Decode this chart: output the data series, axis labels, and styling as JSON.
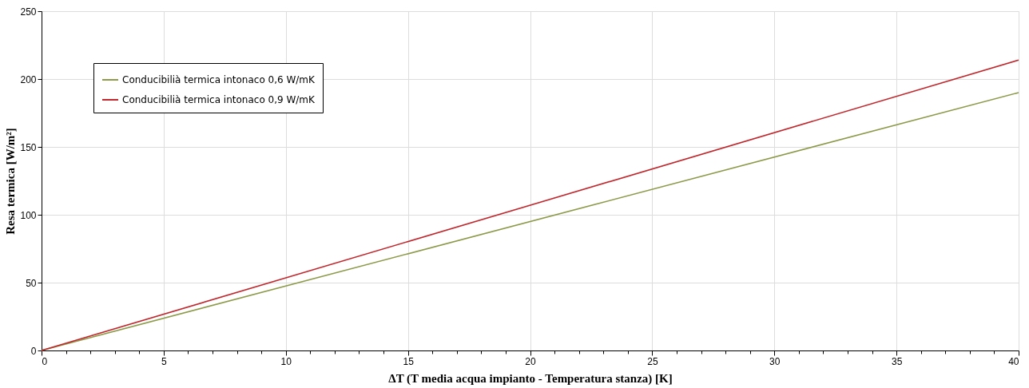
{
  "chart_data": {
    "type": "line",
    "xlabel": "ΔT (T media acqua impianto - Temperatura stanza) [K]",
    "ylabel": "Resa termica [W/m²]",
    "x": [
      0,
      40
    ],
    "series": [
      {
        "name": "Conducibilià termica intonaco 0,6 W/mK",
        "color": "#8c9a4a",
        "values": [
          0,
          190
        ]
      },
      {
        "name": "Conducibilià termica intonaco 0,9 W/mK",
        "color": "#c0282d",
        "values": [
          0,
          214
        ]
      }
    ],
    "xlim": [
      0,
      40
    ],
    "ylim": [
      0,
      250
    ],
    "xticks": [
      0,
      {
        "value": 1,
        "label": null
      },
      {
        "value": 2,
        "label": null
      },
      {
        "value": 3,
        "label": null
      },
      {
        "value": 4,
        "label": null
      },
      5,
      {
        "value": 6,
        "label": null
      },
      {
        "value": 7,
        "label": null
      },
      {
        "value": 8,
        "label": null
      },
      {
        "value": 9,
        "label": null
      },
      10,
      {
        "value": 11,
        "label": null
      },
      {
        "value": 12,
        "label": null
      },
      {
        "value": 13,
        "label": null
      },
      {
        "value": 14,
        "label": null
      },
      15,
      {
        "value": 16,
        "label": null
      },
      {
        "value": 17,
        "label": null
      },
      {
        "value": 18,
        "label": null
      },
      {
        "value": 19,
        "label": null
      },
      20,
      {
        "value": 21,
        "label": null
      },
      {
        "value": 22,
        "label": null
      },
      {
        "value": 23,
        "label": null
      },
      {
        "value": 24,
        "label": null
      },
      25,
      {
        "value": 26,
        "label": null
      },
      {
        "value": 27,
        "label": null
      },
      {
        "value": 28,
        "label": null
      },
      {
        "value": 29,
        "label": null
      },
      30,
      {
        "value": 31,
        "label": null
      },
      {
        "value": 32,
        "label": null
      },
      {
        "value": 33,
        "label": null
      },
      {
        "value": 34,
        "label": null
      },
      35,
      {
        "value": 36,
        "label": null
      },
      {
        "value": 37,
        "label": null
      },
      {
        "value": 38,
        "label": null
      },
      {
        "value": 39,
        "label": null
      },
      40
    ],
    "yticks": [
      0,
      50,
      100,
      150,
      200,
      250
    ],
    "grid": true,
    "legend": "top left",
    "marker": "none",
    "line_style": "solid"
  }
}
